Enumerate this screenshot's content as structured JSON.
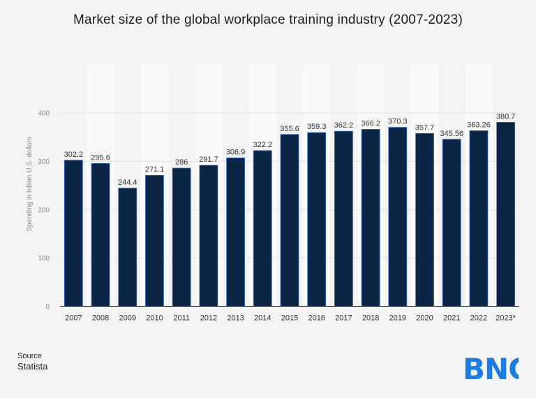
{
  "chart_data": {
    "type": "bar",
    "title": "Market size of the global workplace training industry (2007-2023)",
    "xlabel": "",
    "ylabel": "Spending in billion U.S. dollars",
    "ylim": [
      0,
      400
    ],
    "yticks": [
      0,
      100,
      200,
      300,
      400
    ],
    "categories": [
      "2007",
      "2008",
      "2009",
      "2010",
      "2011",
      "2012",
      "2013",
      "2014",
      "2015",
      "2016",
      "2017",
      "2018",
      "2019",
      "2020",
      "2021",
      "2022",
      "2023*"
    ],
    "values": [
      302.2,
      295.6,
      244.4,
      271.1,
      286,
      291.7,
      306.9,
      322.2,
      355.6,
      359.3,
      362.2,
      366.2,
      370.3,
      357.7,
      345.56,
      363.26,
      380.7
    ],
    "value_labels": [
      "302.2",
      "295.6",
      "244.4",
      "271.1",
      "286",
      "291.7",
      "306.9",
      "322.2",
      "355.6",
      "359.3",
      "362.2",
      "366.2",
      "370.3",
      "357.7",
      "345.56",
      "363.26",
      "380.7"
    ],
    "bar_color": "#0c2544",
    "bar_edge_color": "#2f6fd6"
  },
  "source": {
    "label": "Source",
    "value": "Statista"
  },
  "logo": {
    "text": "BNG",
    "color": "#1e7de0"
  }
}
